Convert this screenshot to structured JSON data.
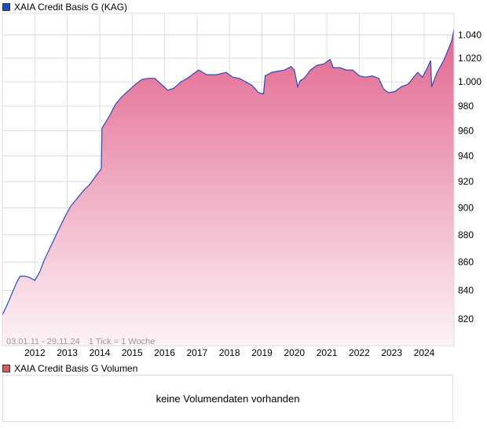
{
  "legend_main": {
    "label": "XAIA Credit Basis G (KAG)",
    "color": "#1f4fbf"
  },
  "legend_volume": {
    "label": "XAIA Credit Basis G Volumen",
    "color": "#d06060"
  },
  "volume_message": "keine Volumendaten vorhanden",
  "chart_data": {
    "type": "area",
    "title": "XAIA Credit Basis G (KAG)",
    "range_label": "03.01.11 - 29.11.24",
    "tick_label": "1 Tick = 1 Woche",
    "xlim": [
      2011.0,
      2024.92
    ],
    "ylim": [
      802,
      1059
    ],
    "yscale": "log",
    "yticks": [
      820,
      840,
      860,
      880,
      900,
      920,
      940,
      960,
      980,
      1000,
      1020,
      1040
    ],
    "ytick_labels": [
      "820",
      "840",
      "860",
      "880",
      "900",
      "920",
      "940",
      "960",
      "980",
      "1.000",
      "1.020",
      "1.040"
    ],
    "xticks": [
      2012,
      2013,
      2014,
      2015,
      2016,
      2017,
      2018,
      2019,
      2020,
      2021,
      2022,
      2023,
      2024
    ],
    "xtick_labels": [
      "2012",
      "2013",
      "2014",
      "2015",
      "2016",
      "2017",
      "2018",
      "2019",
      "2020",
      "2021",
      "2022",
      "2023",
      "2024"
    ],
    "grid": true,
    "line_color": "#1f4fbf",
    "fill_top": "#e2668f",
    "fill_bottom": "#fdf3f7",
    "x": [
      2011.0,
      2011.15,
      2011.3,
      2011.45,
      2011.55,
      2011.7,
      2011.85,
      2012.0,
      2012.15,
      2012.3,
      2012.5,
      2012.7,
      2012.9,
      2013.1,
      2013.3,
      2013.5,
      2013.7,
      2013.9,
      2014.05,
      2014.07,
      2014.3,
      2014.5,
      2014.7,
      2014.9,
      2015.1,
      2015.3,
      2015.5,
      2015.7,
      2015.9,
      2016.1,
      2016.3,
      2016.5,
      2016.7,
      2016.9,
      2017.05,
      2017.3,
      2017.6,
      2017.9,
      2018.1,
      2018.3,
      2018.5,
      2018.7,
      2018.9,
      2019.05,
      2019.1,
      2019.3,
      2019.5,
      2019.7,
      2019.9,
      2020.0,
      2020.1,
      2020.18,
      2020.3,
      2020.5,
      2020.7,
      2020.9,
      2021.1,
      2021.2,
      2021.4,
      2021.6,
      2021.8,
      2022.0,
      2022.2,
      2022.4,
      2022.6,
      2022.75,
      2022.9,
      2023.1,
      2023.3,
      2023.5,
      2023.65,
      2023.8,
      2023.95,
      2024.1,
      2024.2,
      2024.23,
      2024.4,
      2024.6,
      2024.75,
      2024.85,
      2024.92
    ],
    "values": [
      823,
      830,
      838,
      846,
      850,
      850,
      849,
      847,
      853,
      862,
      872,
      882,
      892,
      901,
      907,
      913,
      918,
      925,
      930,
      962,
      972,
      982,
      988,
      993,
      998,
      1002,
      1003,
      1003,
      998,
      993,
      995,
      1000,
      1003,
      1007,
      1010,
      1006,
      1006,
      1008,
      1004,
      1003,
      1000,
      997,
      991,
      990,
      1005,
      1008,
      1009,
      1010,
      1013,
      1010,
      996,
      1001,
      1003,
      1010,
      1014,
      1015,
      1019,
      1012,
      1012,
      1010,
      1010,
      1005,
      1004,
      1005,
      1003,
      994,
      991,
      992,
      996,
      998,
      1003,
      1008,
      1004,
      1012,
      1018,
      996,
      1008,
      1018,
      1028,
      1035,
      1045
    ]
  }
}
